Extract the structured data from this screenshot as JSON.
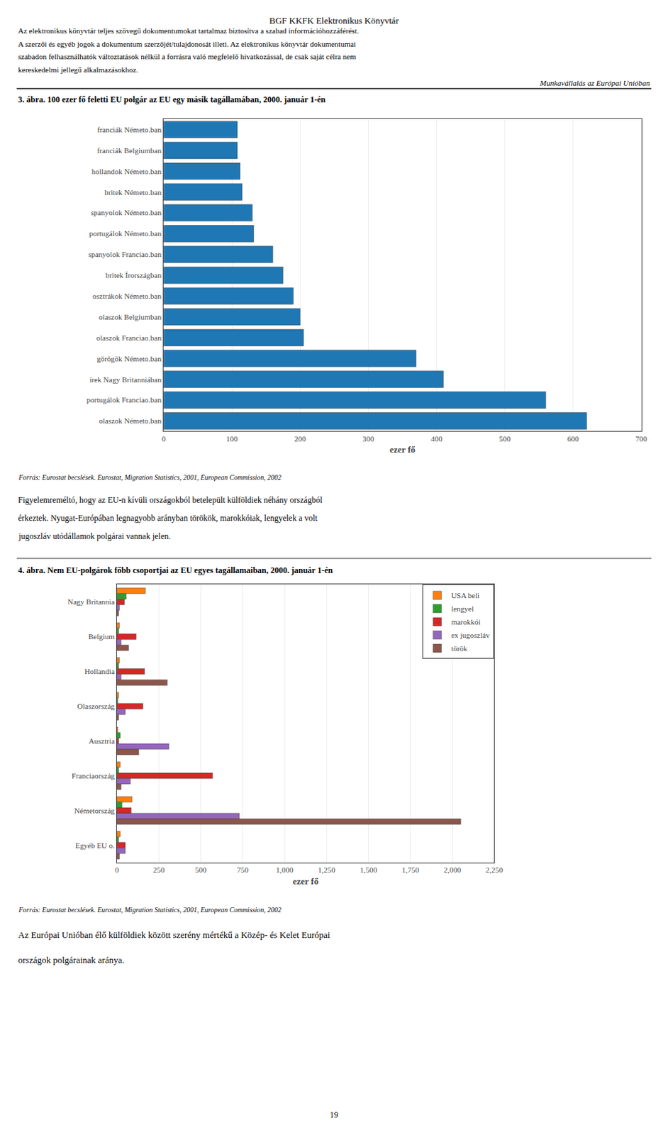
{
  "chart_data": [
    {
      "type": "bar",
      "orientation": "horizontal",
      "title": "3. ábra. 100 ezer fő feletti EU polgár az EU egy másik tagállamában, 2000. január 1-én",
      "xlabel": "ezer fő",
      "categories": [
        "franciák Németo.ban",
        "franciák Belgiumban",
        "hollandok Németo.ban",
        "britek Németo.ban",
        "spanyolok Németo.ban",
        "portugálok Németo.ban",
        "spanyolok Franciao.ban",
        "britek Írországban",
        "osztrákok Németo.ban",
        "olaszok Belgiumban",
        "olaszok Franciao.ban",
        "görögök Németo.ban",
        "írek Nagy Britanniában",
        "portugálok Franciao.ban",
        "olaszok Németo.ban"
      ],
      "values": [
        108,
        108,
        112,
        115,
        130,
        132,
        160,
        175,
        190,
        200,
        205,
        370,
        410,
        560,
        620
      ],
      "xlim": [
        0,
        700
      ],
      "xticks": [
        0,
        100,
        200,
        300,
        400,
        500,
        600,
        700
      ],
      "grid": true,
      "annotations": [
        "BGF KKFK Elektronikus Könyvtár",
        "Az elektronikus könyvtár teljes szövegű dokumentumokat tartalmaz biztosítva a szabad információhozzáférést.",
        "A szerzői és egyéb jogok a dokumentum szerzőjét/tulajdonosát illeti. Az elektronikus könyvtár dokumentumai",
        "szabadon felhasználhatók változtatások nélkül a forrásra való megfelelő hivatkozással, de csak saját célra nem",
        "kereskedelmi jellegű alkalmazásokhoz.",
        "Munkavállalás az Európai Unióban",
        "Forrás: Eurostat becslések. Eurostat, Migration Statistics, 2001, European Commission, 2002",
        "Figyelemreméltó, hogy az EU-n kívüli országokból betelepült külföldiek néhány országból",
        "érkeztek. Nyugat-Európában legnagyobb arányban törökök, marokkóiak, lengyelek a volt",
        "jugoszláv utódállamok polgárai vannak jelen."
      ]
    },
    {
      "type": "bar",
      "orientation": "horizontal",
      "title": "4. ábra. Nem EU-polgárok főbb csoportjai az EU egyes tagállamaiban, 2000. január 1-én",
      "xlabel": "ezer fő",
      "categories": [
        "Nagy Britannia",
        "Belgium",
        "Hollandia",
        "Olaszország",
        "Ausztria",
        "Franciaország",
        "Németország",
        "Egyéb EU o."
      ],
      "series": [
        {
          "name": "USA beli",
          "values": [
            170,
            15,
            15,
            10,
            5,
            20,
            90,
            20
          ]
        },
        {
          "name": "lengyel",
          "values": [
            55,
            10,
            10,
            5,
            20,
            10,
            30,
            10
          ]
        },
        {
          "name": "marokkói",
          "values": [
            45,
            115,
            165,
            155,
            10,
            570,
            85,
            50
          ]
        },
        {
          "name": "ex jugoszláv",
          "values": [
            15,
            25,
            25,
            50,
            310,
            80,
            730,
            50
          ]
        },
        {
          "name": "török",
          "values": [
            10,
            70,
            300,
            10,
            130,
            25,
            2050,
            15
          ]
        }
      ],
      "xlim": [
        0,
        2250
      ],
      "xticks": [
        0,
        250,
        500,
        750,
        {
          "value": 1000,
          "label": "1,000"
        },
        {
          "value": 1250,
          "label": "1,250"
        },
        {
          "value": 1500,
          "label": "1,500"
        },
        {
          "value": 1750,
          "label": "1,750"
        },
        {
          "value": 2000,
          "label": "2,000"
        },
        {
          "value": 2250,
          "label": "2,250"
        }
      ],
      "grid": true,
      "legend": "top right",
      "annotations": [
        "Forrás: Eurostat becslések. Eurostat, Migration Statistics, 2001, European Commission, 2002",
        "Az Európai Unióban élő külföldiek között szerény mértékű a Közép- és Kelet Európai",
        "országok polgárainak aránya.",
        "19"
      ]
    }
  ]
}
